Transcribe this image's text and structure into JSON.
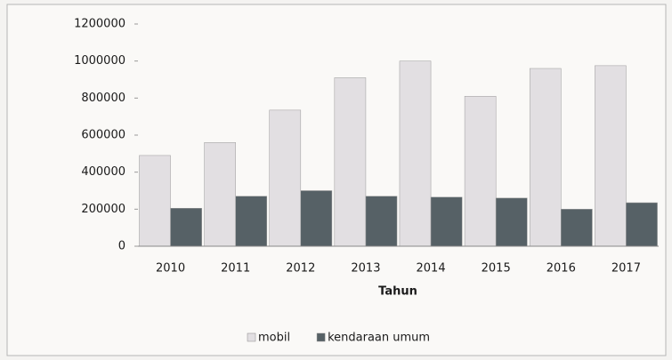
{
  "chart_data": {
    "type": "bar",
    "x_label": "Tahun",
    "categories": [
      "2010",
      "2011",
      "2012",
      "2013",
      "2014",
      "2015",
      "2016",
      "2017"
    ],
    "series": [
      {
        "name": "mobil",
        "color": "#e2dfe2",
        "values": [
          490000,
          560000,
          735000,
          910000,
          1000000,
          810000,
          960000,
          975000
        ]
      },
      {
        "name": "kendaraan umum",
        "color": "#566166",
        "values": [
          205000,
          270000,
          300000,
          270000,
          265000,
          260000,
          200000,
          235000
        ]
      }
    ],
    "ylim": [
      0,
      1200000
    ],
    "yticks": [
      0,
      200000,
      400000,
      600000,
      800000,
      1000000,
      1200000
    ],
    "grid": false,
    "legend": "bottom"
  }
}
